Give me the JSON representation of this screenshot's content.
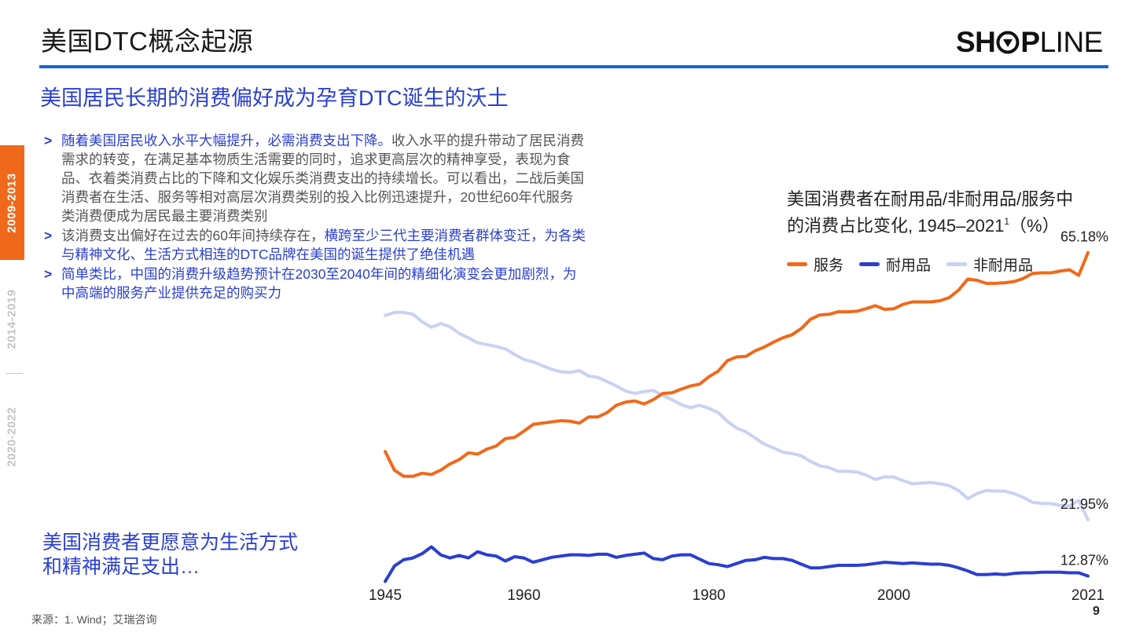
{
  "header": {
    "title": "美国DTC概念起源",
    "logo": {
      "part1": "SH",
      "part2": "P",
      "part3": "LINE"
    }
  },
  "subtitle": "美国居民长期的消费偏好成为孕育DTC诞生的沃土",
  "side_tabs": [
    "2009-2013",
    "2014-2019",
    "2020-2022"
  ],
  "bullets": [
    {
      "marker": ">",
      "highlight": "随着美国居民收入水平大幅提升，必需消费支出下降。",
      "text": "收入水平的提升带动了居民消费需求的转变，在满足基本物质生活需要的同时，追求更高层次的精神享受，表现为食品、衣着类消费占比的下降和文化娱乐类消费支出的持续增长。可以看出，二战后美国消费者在生活、服务等相对高层次消费类别的投入比例迅速提升，20世纪60年代服务类消费便成为居民最主要消费类别"
    },
    {
      "marker": ">",
      "text": "该消费支出偏好在过去的60年间持续存在，",
      "highlight": "横跨至少三代主要消费者群体变迁，为各类与精神文化、生活方式相连的DTC品牌在美国的诞生提供了绝佳机遇"
    },
    {
      "marker": ">",
      "highlight": "简单类比，中国的消费升级趋势预计在2030至2040年间的精细化演变会更加剧烈，为中高端的服务产业提供充足的购买力"
    }
  ],
  "bottom_left": {
    "line1": "美国消费者更愿意为生活方式",
    "line2": "和精神满足支出…"
  },
  "chart_data": {
    "type": "line",
    "title_line1": "美国消费者在耐用品/非耐用品/服务中",
    "title_line2": "的消费占比变化, 1945–2021",
    "title_sup": "1",
    "title_unit": "（%）",
    "xlabel": "",
    "ylabel": "",
    "x_tick_labels": [
      "1945",
      "1960",
      "1980",
      "2000",
      "2021"
    ],
    "x_ticks": [
      1945,
      1960,
      1980,
      2000,
      2021
    ],
    "xlim": [
      1945,
      2021
    ],
    "ylim": [
      0,
      80
    ],
    "grid": false,
    "legend_position": "top-left",
    "x": [
      1945,
      1946,
      1947,
      1948,
      1949,
      1950,
      1951,
      1952,
      1953,
      1954,
      1955,
      1956,
      1957,
      1958,
      1959,
      1960,
      1961,
      1962,
      1963,
      1964,
      1965,
      1966,
      1967,
      1968,
      1969,
      1970,
      1971,
      1972,
      1973,
      1974,
      1975,
      1976,
      1977,
      1978,
      1979,
      1980,
      1981,
      1982,
      1983,
      1984,
      1985,
      1986,
      1987,
      1988,
      1989,
      1990,
      1991,
      1992,
      1993,
      1994,
      1995,
      1996,
      1997,
      1998,
      1999,
      2000,
      2001,
      2002,
      2003,
      2004,
      2005,
      2006,
      2007,
      2008,
      2009,
      2010,
      2011,
      2012,
      2013,
      2014,
      2015,
      2016,
      2017,
      2018,
      2019,
      2020,
      2021
    ],
    "series": [
      {
        "name": "服务",
        "color": "#f0691a",
        "end_label": "65.18%",
        "values": [
          33.0,
          30.0,
          29.0,
          29.0,
          29.5,
          29.3,
          30.0,
          31.0,
          31.7,
          32.8,
          32.6,
          33.4,
          33.9,
          35.1,
          35.3,
          36.3,
          37.4,
          37.6,
          37.8,
          38.0,
          37.9,
          37.6,
          38.6,
          38.6,
          39.3,
          40.5,
          41.0,
          41.2,
          40.7,
          41.4,
          42.4,
          42.5,
          43.1,
          43.6,
          43.9,
          45.1,
          46.0,
          47.7,
          48.3,
          48.4,
          49.3,
          49.9,
          50.7,
          51.4,
          51.9,
          52.9,
          54.4,
          55.1,
          55.2,
          55.6,
          55.6,
          55.7,
          56.1,
          56.6,
          56.0,
          56.1,
          56.8,
          57.2,
          57.2,
          57.2,
          57.4,
          57.9,
          59.1,
          60.9,
          60.7,
          60.2,
          60.2,
          60.3,
          60.5,
          61.0,
          61.8,
          61.9,
          61.9,
          62.2,
          62.4,
          61.5,
          65.18
        ]
      },
      {
        "name": "耐用品",
        "color": "#2a3fd0",
        "end_label": "12.87%",
        "values": [
          12.0,
          14.5,
          15.5,
          15.8,
          16.5,
          17.6,
          16.3,
          15.8,
          16.2,
          15.8,
          16.8,
          16.3,
          16.1,
          15.3,
          16.0,
          15.8,
          15.1,
          15.5,
          15.9,
          16.1,
          16.3,
          16.3,
          16.2,
          16.4,
          16.4,
          15.9,
          16.2,
          16.4,
          16.6,
          15.7,
          15.5,
          16.1,
          16.3,
          16.3,
          15.6,
          14.9,
          14.7,
          14.4,
          14.9,
          15.4,
          15.5,
          15.9,
          15.7,
          15.7,
          15.4,
          14.8,
          14.2,
          14.2,
          14.4,
          14.6,
          14.6,
          14.6,
          14.7,
          14.9,
          15.1,
          15.0,
          14.9,
          15.0,
          14.9,
          14.8,
          14.8,
          14.6,
          14.2,
          13.7,
          13.1,
          13.1,
          13.2,
          13.1,
          13.3,
          13.4,
          13.4,
          13.5,
          13.5,
          13.5,
          13.4,
          13.4,
          12.87
        ]
      },
      {
        "name": "非耐用品",
        "color": "#c9d2f3",
        "end_label": "21.95%",
        "values": [
          55.0,
          55.5,
          55.5,
          55.2,
          54.0,
          53.1,
          53.7,
          53.2,
          52.1,
          51.4,
          50.6,
          50.3,
          50.0,
          49.6,
          48.7,
          47.9,
          47.5,
          46.9,
          46.3,
          45.9,
          45.8,
          46.1,
          45.2,
          45.0,
          44.3,
          43.6,
          42.8,
          42.4,
          42.7,
          42.9,
          42.1,
          41.4,
          40.6,
          40.1,
          40.5,
          40.0,
          39.3,
          37.9,
          36.8,
          36.2,
          35.2,
          34.2,
          33.6,
          32.9,
          32.7,
          32.3,
          31.4,
          30.7,
          30.4,
          29.8,
          29.8,
          29.7,
          29.2,
          28.5,
          28.9,
          28.9,
          28.3,
          27.8,
          27.9,
          28.0,
          27.8,
          27.5,
          26.7,
          25.4,
          26.2,
          26.7,
          26.6,
          26.6,
          26.2,
          25.6,
          24.8,
          24.6,
          24.6,
          24.3,
          24.2,
          25.1,
          21.95
        ]
      }
    ]
  },
  "footer": {
    "source": "来源：1. Wind；艾瑞咨询",
    "page": "9"
  }
}
